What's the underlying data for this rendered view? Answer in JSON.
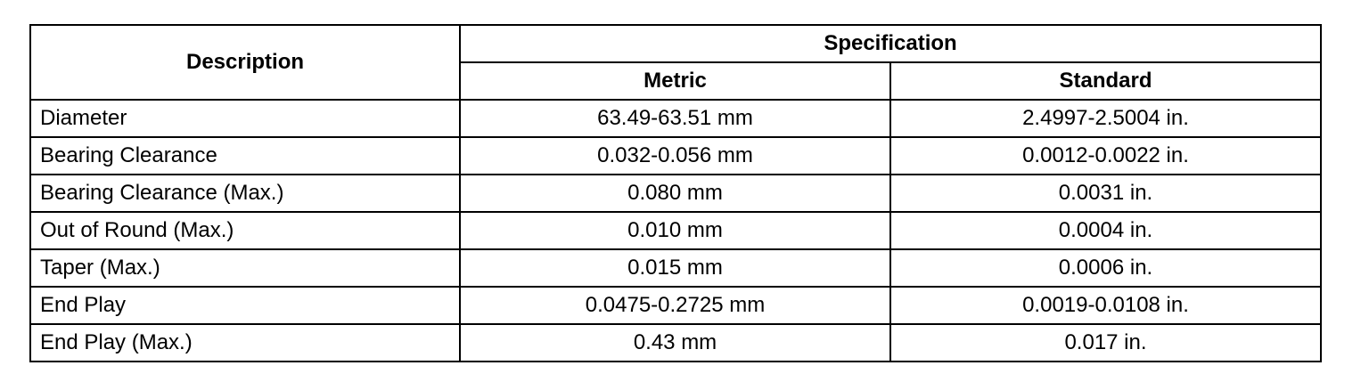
{
  "header": {
    "description": "Description",
    "specification": "Specification",
    "metric": "Metric",
    "standard": "Standard"
  },
  "table": {
    "rows": [
      [
        "Diameter",
        "63.49-63.51 mm",
        "2.4997-2.5004 in."
      ],
      [
        "Bearing Clearance",
        "0.032-0.056 mm",
        "0.0012-0.0022 in."
      ],
      [
        "Bearing Clearance (Max.)",
        "0.080 mm",
        "0.0031 in."
      ],
      [
        "Out of Round (Max.)",
        "0.010 mm",
        "0.0004 in."
      ],
      [
        "Taper (Max.)",
        "0.015 mm",
        "0.0006 in."
      ],
      [
        "End Play",
        "0.0475-0.2725 mm",
        "0.0019-0.0108 in."
      ],
      [
        "End Play (Max.)",
        "0.43 mm",
        "0.017 in."
      ]
    ]
  }
}
